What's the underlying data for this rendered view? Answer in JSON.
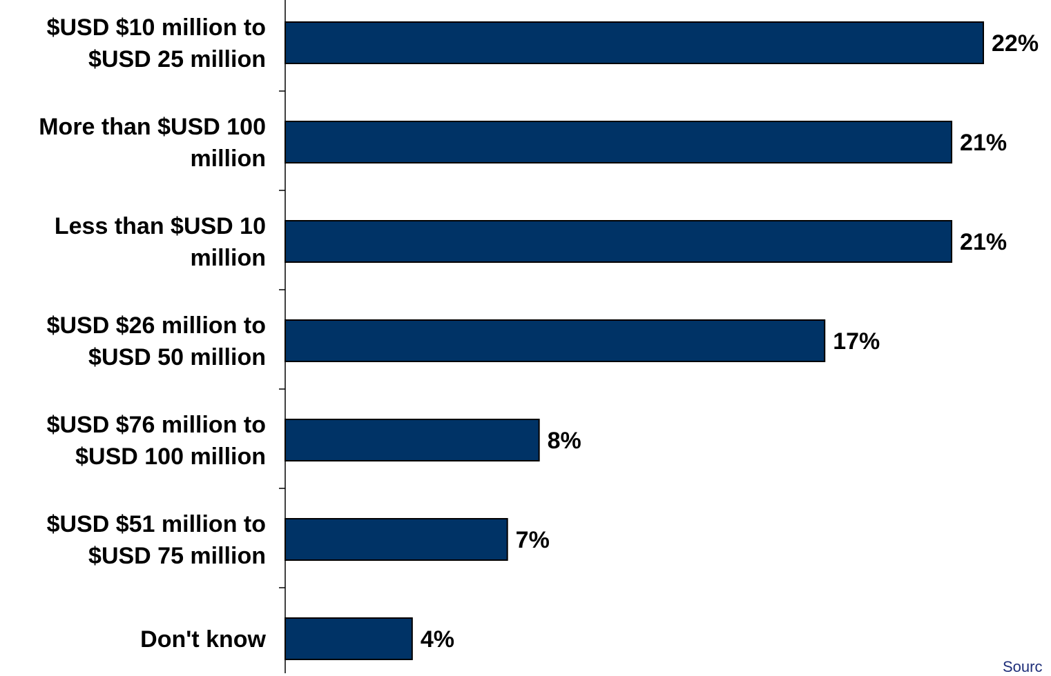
{
  "chart_data": {
    "type": "bar",
    "orientation": "horizontal",
    "categories": [
      [
        "$USD $10 million to",
        "$USD 25 million"
      ],
      [
        "More than $USD 100",
        "million"
      ],
      [
        "Less than $USD 10",
        "million"
      ],
      [
        "$USD $26 million to",
        "$USD 50 million"
      ],
      [
        "$USD $76 million to",
        "$USD 100 million"
      ],
      [
        "$USD $51 million to",
        "$USD 75 million"
      ],
      [
        "Don't know"
      ]
    ],
    "values": [
      22,
      21,
      21,
      17,
      8,
      7,
      4
    ],
    "value_labels": [
      "22%",
      "21%",
      "21%",
      "17%",
      "8%",
      "7%",
      "4%"
    ],
    "xlim": [
      0,
      22
    ],
    "grid": false,
    "legend": "none",
    "bar_color": "#003366"
  },
  "source_note": "Sourc"
}
